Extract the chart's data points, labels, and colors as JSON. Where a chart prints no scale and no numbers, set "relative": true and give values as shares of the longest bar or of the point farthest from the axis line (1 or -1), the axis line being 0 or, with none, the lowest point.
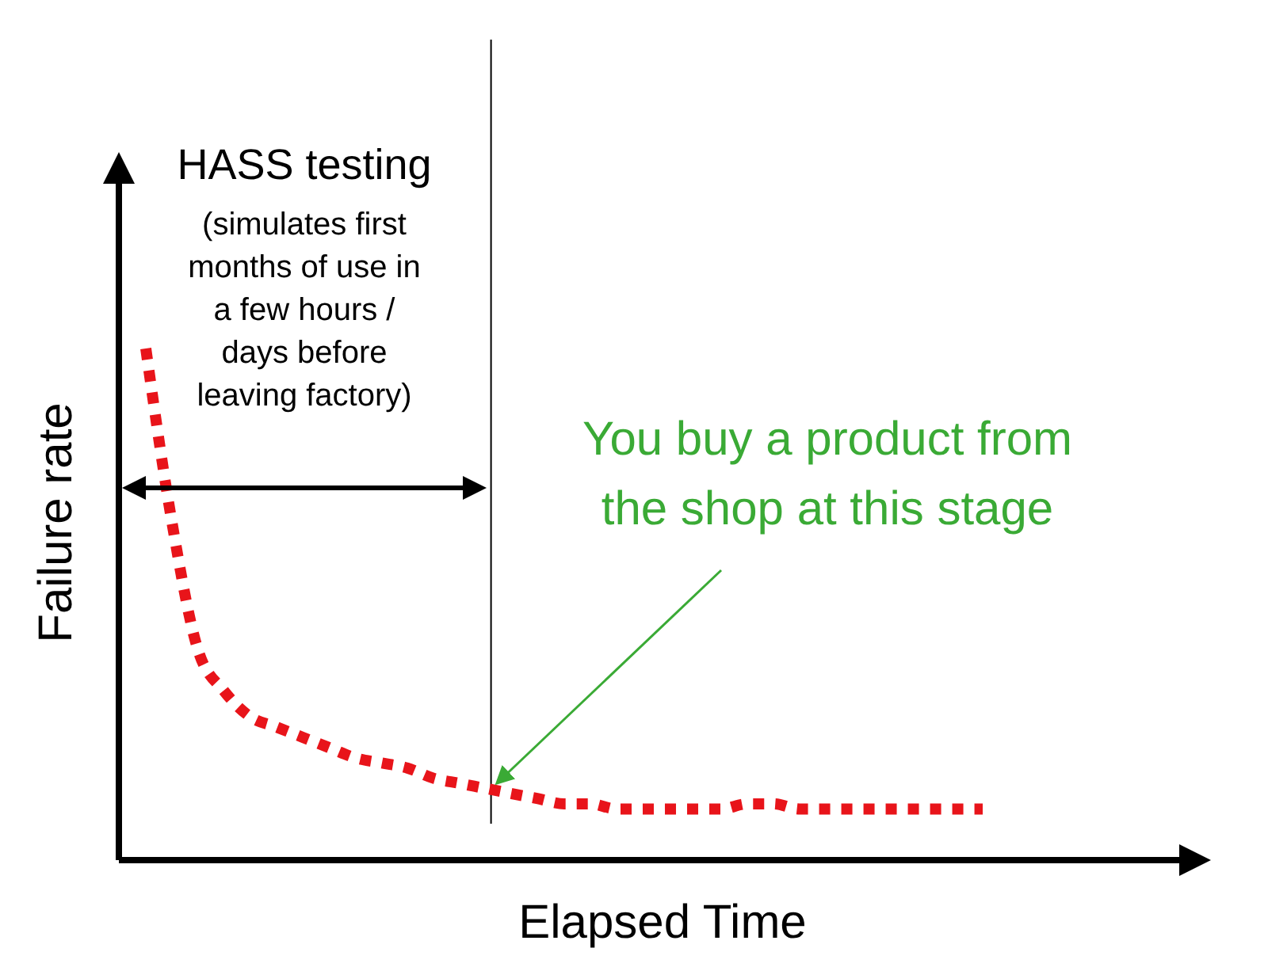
{
  "chart_data": {
    "type": "line",
    "relative": true,
    "xlabel": "Elapsed Time",
    "ylabel": "Failure rate",
    "categories": [
      null,
      null,
      null,
      null,
      null,
      null,
      null,
      null,
      null,
      null,
      null,
      null,
      null,
      null,
      null,
      null,
      null,
      null,
      null,
      null,
      null,
      null,
      null,
      null,
      null,
      null,
      null,
      null,
      null,
      null,
      null,
      null,
      null
    ],
    "series": [
      {
        "color": "#e8141a",
        "values": [
          1,
          0.66,
          0.41,
          0.33,
          0.28,
          0.26,
          0.24,
          0.22,
          0.2,
          0.19,
          0.18,
          0.16,
          0.15,
          0.14,
          0.13,
          0.12,
          0.11,
          0.11,
          0.1,
          0.1,
          0.1,
          0.1,
          0.1,
          0.11,
          0.11,
          0.1,
          0.1,
          0.1,
          0.1,
          0.1,
          0.1,
          0.1,
          0.1
        ]
      }
    ],
    "line_style": "dotted",
    "annotations": [
      "HASS testing",
      "(simulates first\nmonths of use in\na few hours /\ndays before\nleaving factory)",
      "You buy a product from\nthe shop at this stage"
    ]
  }
}
